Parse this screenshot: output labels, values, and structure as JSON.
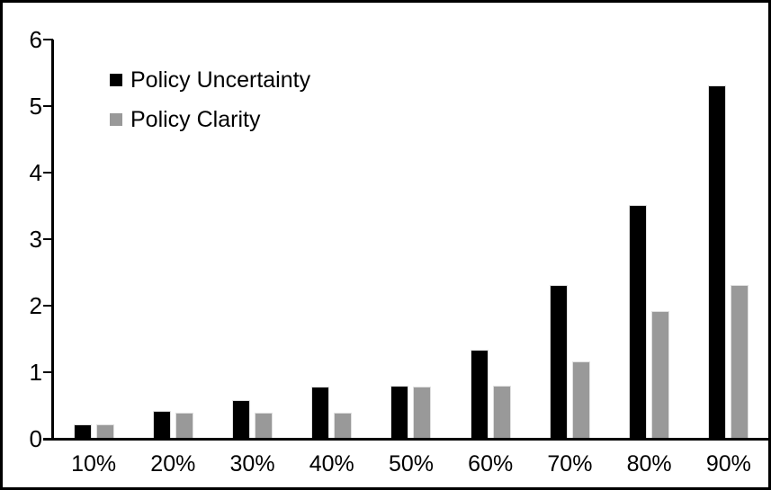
{
  "figure": {
    "background_color": "#ffffff",
    "border_color": "#000000"
  },
  "legend": {
    "items": [
      {
        "label": "Policy Uncertainty",
        "color": "#000000",
        "swatch": "black-square"
      },
      {
        "label": "Policy Clarity",
        "color": "#999999",
        "swatch": "gray-square"
      }
    ]
  },
  "chart_data": {
    "type": "bar",
    "title": "",
    "xlabel": "",
    "ylabel": "",
    "categories": [
      "10%",
      "20%",
      "30%",
      "40%",
      "50%",
      "60%",
      "70%",
      "80%",
      "90%"
    ],
    "series": [
      {
        "name": "Policy Uncertainty",
        "color": "#000000",
        "values": [
          0.2,
          0.4,
          0.57,
          0.77,
          0.78,
          1.33,
          2.3,
          3.5,
          5.3
        ]
      },
      {
        "name": "Policy Clarity",
        "color": "#999999",
        "values": [
          0.2,
          0.38,
          0.38,
          0.38,
          0.77,
          0.78,
          1.15,
          1.9,
          2.3
        ]
      }
    ],
    "ylim": [
      0,
      6
    ],
    "yticks": [
      0,
      1,
      2,
      3,
      4,
      5,
      6
    ],
    "grid": false,
    "legend_position": "top-left-inside"
  }
}
